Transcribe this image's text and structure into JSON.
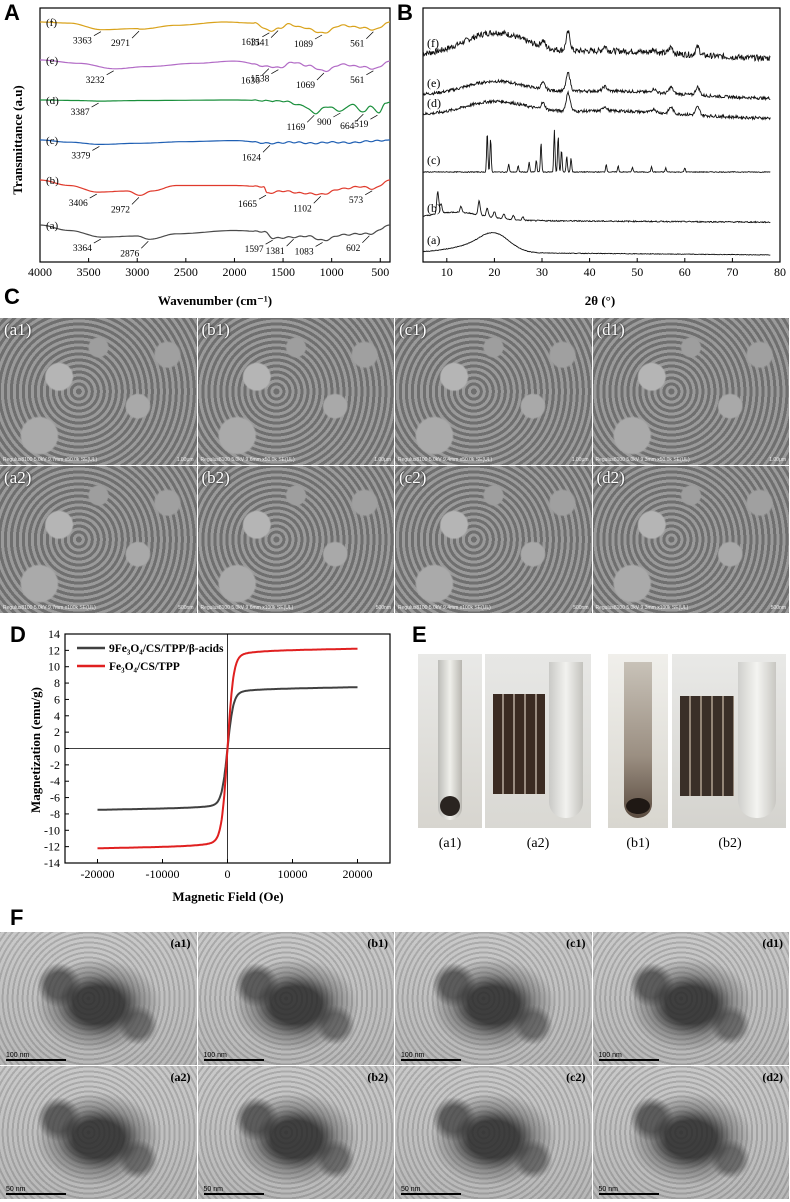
{
  "panels": {
    "A": "A",
    "B": "B",
    "C": "C",
    "D": "D",
    "E": "E",
    "F": "F"
  },
  "chart_data": [
    {
      "type": "line",
      "panel": "A",
      "xlabel": "Wavenumber (cm⁻¹)",
      "ylabel": "Transmittance (a.u)",
      "xlim": [
        4000,
        400
      ],
      "xticks": [
        "4000",
        "3500",
        "3000",
        "2500",
        "2000",
        "1500",
        "1000",
        "500"
      ],
      "series": [
        {
          "name": "(f)",
          "color": "#d9a21b",
          "peaks": [
            "3363",
            "2971",
            "1631",
            "1541",
            "1089",
            "561"
          ],
          "points": [
            [
              4000,
              0.0
            ],
            [
              3700,
              0.01
            ],
            [
              3363,
              0.07
            ],
            [
              3000,
              0.06
            ],
            [
              2971,
              0.065
            ],
            [
              2600,
              0.03
            ],
            [
              2100,
              0.0
            ],
            [
              1800,
              0.01
            ],
            [
              1631,
              0.08
            ],
            [
              1541,
              0.06
            ],
            [
              1450,
              0.02
            ],
            [
              1300,
              0.05
            ],
            [
              1089,
              0.1
            ],
            [
              900,
              0.03
            ],
            [
              700,
              0.05
            ],
            [
              561,
              0.07
            ],
            [
              400,
              0.0
            ]
          ]
        },
        {
          "name": "(e)",
          "color": "#b26bc6",
          "peaks": [
            "3232",
            "1636",
            "1538",
            "1069",
            "561"
          ],
          "points": [
            [
              4000,
              0.0
            ],
            [
              3600,
              0.03
            ],
            [
              3232,
              0.08
            ],
            [
              2900,
              0.06
            ],
            [
              2400,
              0.03
            ],
            [
              2000,
              0.01
            ],
            [
              1636,
              0.06
            ],
            [
              1538,
              0.07
            ],
            [
              1400,
              0.02
            ],
            [
              1250,
              0.05
            ],
            [
              1069,
              0.1
            ],
            [
              900,
              0.04
            ],
            [
              700,
              0.06
            ],
            [
              561,
              0.08
            ],
            [
              400,
              0.01
            ]
          ]
        },
        {
          "name": "(d)",
          "color": "#1a8f3c",
          "peaks": [
            "3387",
            "1169",
            "900",
            "664",
            "519"
          ],
          "points": [
            [
              4000,
              0.0
            ],
            [
              3600,
              0.005
            ],
            [
              3387,
              0.01
            ],
            [
              3000,
              0.005
            ],
            [
              2000,
              0.0
            ],
            [
              1500,
              0.01
            ],
            [
              1300,
              0.05
            ],
            [
              1169,
              0.12
            ],
            [
              1050,
              0.06
            ],
            [
              900,
              0.1
            ],
            [
              800,
              0.04
            ],
            [
              664,
              0.11
            ],
            [
              600,
              0.05
            ],
            [
              519,
              0.12
            ],
            [
              450,
              0.03
            ],
            [
              400,
              0.02
            ]
          ]
        },
        {
          "name": "(c)",
          "color": "#1f5fb3",
          "peaks": [
            "3379",
            "1624"
          ],
          "points": [
            [
              4000,
              0.0
            ],
            [
              3700,
              0.02
            ],
            [
              3379,
              0.04
            ],
            [
              3000,
              0.03
            ],
            [
              2500,
              0.015
            ],
            [
              2000,
              0.005
            ],
            [
              1624,
              0.03
            ],
            [
              1400,
              0.02
            ],
            [
              1200,
              0.03
            ],
            [
              1000,
              0.02
            ],
            [
              800,
              0.025
            ],
            [
              600,
              0.01
            ],
            [
              400,
              0.0
            ]
          ]
        },
        {
          "name": "(b)",
          "color": "#e03a2c",
          "peaks": [
            "3406",
            "2972",
            "1665",
            "1102",
            "573"
          ],
          "points": [
            [
              4000,
              0.0
            ],
            [
              3700,
              0.05
            ],
            [
              3406,
              0.11
            ],
            [
              3100,
              0.1
            ],
            [
              2972,
              0.14
            ],
            [
              2850,
              0.1
            ],
            [
              2600,
              0.05
            ],
            [
              2000,
              0.05
            ],
            [
              1700,
              0.06
            ],
            [
              1665,
              0.12
            ],
            [
              1500,
              0.1
            ],
            [
              1300,
              0.12
            ],
            [
              1102,
              0.13
            ],
            [
              900,
              0.08
            ],
            [
              700,
              0.06
            ],
            [
              573,
              0.08
            ],
            [
              400,
              0.0
            ]
          ]
        },
        {
          "name": "(a)",
          "color": "#4a4a4a",
          "peaks": [
            "3364",
            "2876",
            "1597",
            "1381",
            "1083",
            "602"
          ],
          "points": [
            [
              4000,
              0.0
            ],
            [
              3700,
              0.05
            ],
            [
              3364,
              0.11
            ],
            [
              3000,
              0.1
            ],
            [
              2876,
              0.13
            ],
            [
              2600,
              0.08
            ],
            [
              2000,
              0.05
            ],
            [
              1700,
              0.06
            ],
            [
              1597,
              0.12
            ],
            [
              1381,
              0.11
            ],
            [
              1250,
              0.1
            ],
            [
              1083,
              0.14
            ],
            [
              900,
              0.09
            ],
            [
              700,
              0.08
            ],
            [
              602,
              0.08
            ],
            [
              400,
              0.0
            ]
          ]
        }
      ]
    },
    {
      "type": "line",
      "panel": "B",
      "xlabel": "2θ (°)",
      "xlim": [
        5,
        80
      ],
      "xticks": [
        "10",
        "20",
        "30",
        "40",
        "50",
        "60",
        "70",
        "80"
      ],
      "series": [
        {
          "name": "(f)"
        },
        {
          "name": "(e)"
        },
        {
          "name": "(d)"
        },
        {
          "name": "(c)"
        },
        {
          "name": "(b)"
        },
        {
          "name": "(a)"
        }
      ]
    },
    {
      "type": "line",
      "panel": "D",
      "xlabel": "Magnetic Field (Oe)",
      "ylabel": "Magnetization (emu/g)",
      "xlim": [
        -25000,
        25000
      ],
      "ylim": [
        -14,
        14
      ],
      "xticks": [
        "-20000",
        "-10000",
        "0",
        "10000",
        "20000"
      ],
      "yticks": [
        "-14",
        "-12",
        "-10",
        "-8",
        "-6",
        "-4",
        "-2",
        "0",
        "2",
        "4",
        "6",
        "8",
        "10",
        "12",
        "14"
      ],
      "series": [
        {
          "name": "9Fe₃O₄/CS/TPP/β-acids",
          "color": "#404040",
          "ms": 7.2,
          "h0": 900
        },
        {
          "name": "Fe₃O₄/CS/TPP",
          "color": "#e02020",
          "ms": 11.9,
          "h0": 900
        }
      ]
    }
  ],
  "sem": {
    "tiles": [
      {
        "label": "(a1)",
        "meta": "Regulus8100 5.0kV 9.7mm x50.0k SE(UL)",
        "scale": "1.00μm"
      },
      {
        "label": "(b1)",
        "meta": "Regulus8100 5.0kV 9.6mm x50.0k SE(UL)",
        "scale": "1.00μm"
      },
      {
        "label": "(c1)",
        "meta": "Regulus8100 5.0kV 9.4mm x50.0k SE(UL)",
        "scale": "1.00μm"
      },
      {
        "label": "(d1)",
        "meta": "Regulus8100 5.0kV 9.3mm x50.0k SE(UL)",
        "scale": "1.00μm"
      },
      {
        "label": "(a2)",
        "meta": "Regulus8100 5.0kV 9.7mm x100k SE(UL)",
        "scale": "500nm"
      },
      {
        "label": "(b2)",
        "meta": "Regulus8100 5.0kV 9.6mm x100k SE(UL)",
        "scale": "500nm"
      },
      {
        "label": "(c2)",
        "meta": "Regulus8100 5.0kV 9.4mm x100k SE(UL)",
        "scale": "500nm"
      },
      {
        "label": "(d2)",
        "meta": "Regulus8100 5.0kV 9.3mm x100k SE(UL)",
        "scale": "500nm"
      }
    ]
  },
  "photos": {
    "captions": [
      "(a1)",
      "(a2)",
      "(b1)",
      "(b2)"
    ]
  },
  "tem": {
    "tiles": [
      {
        "label": "(a1)",
        "scale": "100 nm"
      },
      {
        "label": "(b1)",
        "scale": "100 nm"
      },
      {
        "label": "(c1)",
        "scale": "100 nm"
      },
      {
        "label": "(d1)",
        "scale": "100 nm"
      },
      {
        "label": "(a2)",
        "scale": "50 nm"
      },
      {
        "label": "(b2)",
        "scale": "50 nm"
      },
      {
        "label": "(c2)",
        "scale": "50 nm"
      },
      {
        "label": "(d2)",
        "scale": "50 nm"
      }
    ]
  }
}
